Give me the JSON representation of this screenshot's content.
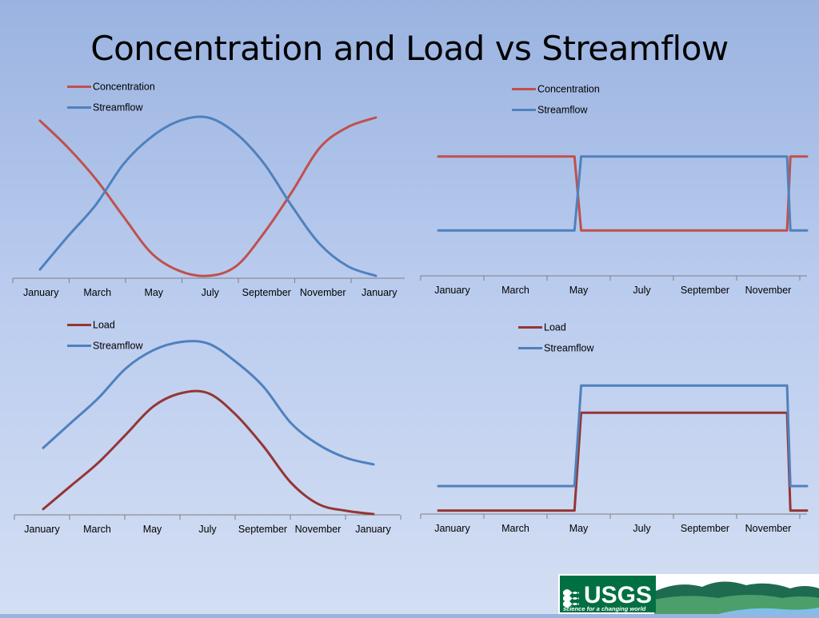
{
  "slide": {
    "title": "Concentration and Load vs Streamflow"
  },
  "logo": {
    "text": "USGS",
    "tagline": "science for a changing world"
  },
  "colors": {
    "concentration": "#c0504d",
    "load": "#943634",
    "streamflow": "#4f81bd",
    "axis": "#7f7f7f"
  },
  "chart_data": [
    {
      "id": "top-left",
      "type": "line",
      "title": "",
      "categories": [
        "January",
        "March",
        "May",
        "July",
        "September",
        "November",
        "January"
      ],
      "x": [
        0,
        2,
        4,
        6,
        8,
        10,
        12
      ],
      "legend": "top-left",
      "grid": false,
      "ylim": [
        0,
        1
      ],
      "series": [
        {
          "name": "Concentration",
          "color": "#c0504d",
          "x": [
            0,
            1,
            2,
            3,
            4,
            5,
            6,
            7,
            8,
            9,
            10,
            11,
            12
          ],
          "values": [
            0.98,
            0.81,
            0.61,
            0.37,
            0.14,
            0.03,
            0.0,
            0.06,
            0.27,
            0.53,
            0.81,
            0.94,
            1.0
          ]
        },
        {
          "name": "Streamflow",
          "color": "#4f81bd",
          "x": [
            0,
            1,
            2,
            3,
            4,
            5,
            6,
            7,
            8,
            9,
            10,
            11,
            12
          ],
          "values": [
            0.04,
            0.25,
            0.45,
            0.71,
            0.88,
            0.98,
            1.0,
            0.9,
            0.71,
            0.44,
            0.2,
            0.06,
            0.0
          ]
        }
      ]
    },
    {
      "id": "top-right",
      "type": "line",
      "title": "",
      "categories": [
        "January",
        "March",
        "May",
        "July",
        "September",
        "November"
      ],
      "x": [
        0,
        2,
        4,
        6,
        8,
        10
      ],
      "legend": "top-left",
      "grid": false,
      "ylim": [
        0,
        1
      ],
      "series": [
        {
          "name": "Concentration",
          "color": "#c0504d",
          "x": [
            0,
            4.1,
            4.3,
            10.5,
            10.6,
            11.1
          ],
          "values": [
            0.84,
            0.84,
            0.16,
            0.16,
            0.84,
            0.84
          ]
        },
        {
          "name": "Streamflow",
          "color": "#4f81bd",
          "x": [
            0,
            4.1,
            4.3,
            10.5,
            10.6,
            11.1
          ],
          "values": [
            0.16,
            0.16,
            0.84,
            0.84,
            0.16,
            0.16
          ]
        }
      ]
    },
    {
      "id": "bottom-left",
      "type": "line",
      "title": "",
      "categories": [
        "January",
        "March",
        "May",
        "July",
        "September",
        "November",
        "January"
      ],
      "x": [
        0,
        2,
        4,
        6,
        8,
        10,
        12
      ],
      "legend": "top-left",
      "grid": false,
      "ylim": [
        0,
        1
      ],
      "series": [
        {
          "name": "Load",
          "color": "#943634",
          "x": [
            0,
            1,
            2,
            3,
            4,
            5,
            6,
            7,
            8,
            9,
            10,
            11,
            12
          ],
          "values": [
            0.03,
            0.17,
            0.31,
            0.48,
            0.65,
            0.73,
            0.73,
            0.6,
            0.41,
            0.19,
            0.06,
            0.02,
            0.0
          ]
        },
        {
          "name": "Streamflow",
          "color": "#4f81bd",
          "x": [
            0,
            1,
            2,
            3,
            4,
            5,
            6,
            7,
            8,
            9,
            10,
            11,
            12
          ],
          "values": [
            0.4,
            0.55,
            0.7,
            0.88,
            0.99,
            1.04,
            1.03,
            0.92,
            0.77,
            0.55,
            0.42,
            0.34,
            0.3
          ]
        }
      ]
    },
    {
      "id": "bottom-right",
      "type": "line",
      "title": "",
      "categories": [
        "January",
        "March",
        "May",
        "July",
        "September",
        "November"
      ],
      "x": [
        0,
        2,
        4,
        6,
        8,
        10
      ],
      "legend": "top-left",
      "grid": false,
      "ylim": [
        0,
        1
      ],
      "series": [
        {
          "name": "Load",
          "color": "#943634",
          "x": [
            0,
            4.1,
            4.3,
            10.5,
            10.6,
            11.1
          ],
          "values": [
            0.02,
            0.02,
            0.74,
            0.74,
            0.02,
            0.02
          ]
        },
        {
          "name": "Streamflow",
          "color": "#4f81bd",
          "x": [
            0,
            4.1,
            4.3,
            10.5,
            10.6,
            11.1
          ],
          "values": [
            0.2,
            0.2,
            0.94,
            0.94,
            0.2,
            0.2
          ]
        }
      ]
    }
  ]
}
